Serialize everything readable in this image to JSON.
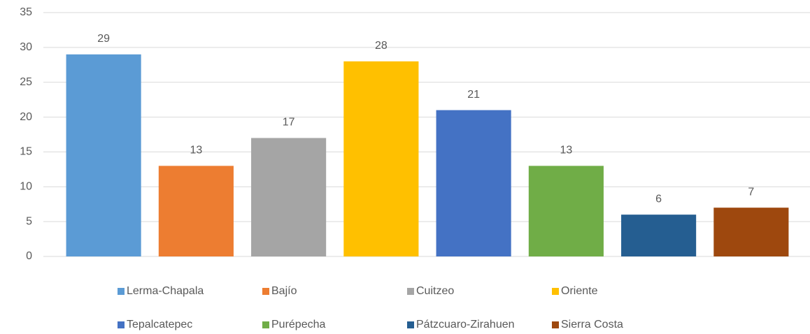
{
  "chart_data": {
    "type": "bar",
    "series": [
      {
        "name": "Lerma-Chapala",
        "color": "#5b9bd5",
        "values": [
          29
        ]
      },
      {
        "name": "Bajío",
        "color": "#ed7d31",
        "values": [
          13
        ]
      },
      {
        "name": "Cuitzeo",
        "color": "#a5a5a5",
        "values": [
          17
        ]
      },
      {
        "name": "Oriente",
        "color": "#ffc000",
        "values": [
          28
        ]
      },
      {
        "name": "Tepalcatepec",
        "color": "#4472c4",
        "values": [
          21
        ]
      },
      {
        "name": "Purépecha",
        "color": "#70ad47",
        "values": [
          13
        ]
      },
      {
        "name": "Pátzcuaro-Zirahuen",
        "color": "#255e91",
        "values": [
          6
        ]
      },
      {
        "name": "Sierra Costa",
        "color": "#9e480e",
        "values": [
          7
        ]
      }
    ],
    "ylim": [
      0,
      35
    ],
    "yticks": [
      0,
      5,
      10,
      15,
      20,
      25,
      30,
      35
    ],
    "grid": true,
    "legend": "bottom"
  }
}
